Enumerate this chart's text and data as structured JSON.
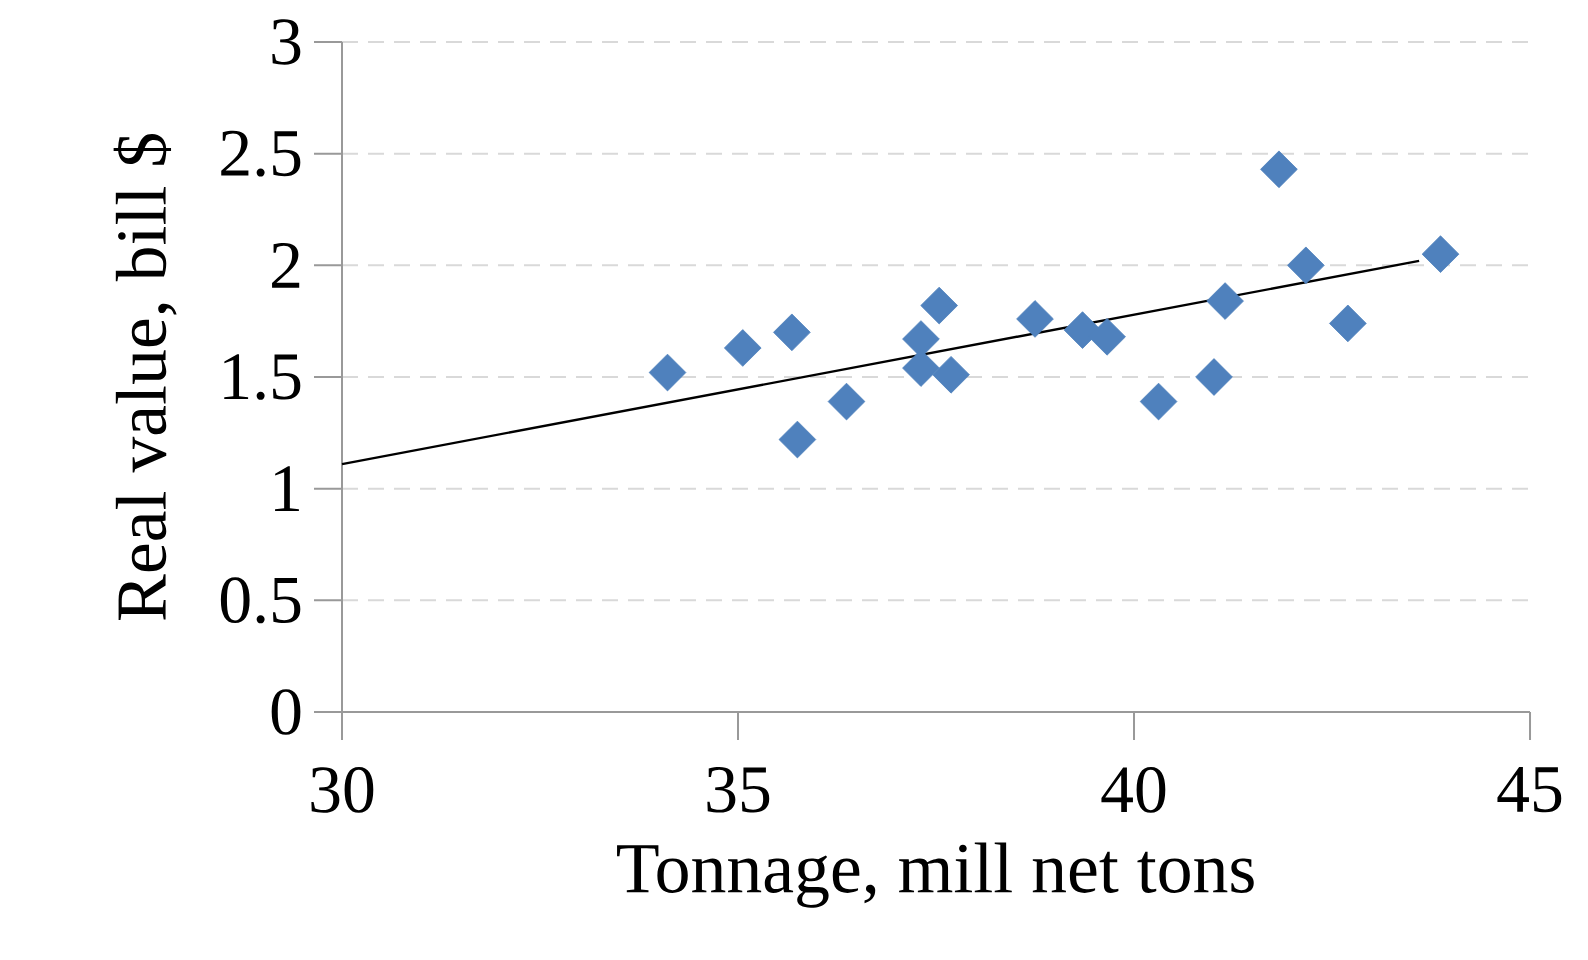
{
  "chart_data": {
    "type": "scatter",
    "xlabel": "Tonnage, mill net tons",
    "ylabel": "Real value, bill $",
    "xlim": [
      30,
      45
    ],
    "xticks": [
      30,
      35,
      40,
      45
    ],
    "ylim": [
      0,
      3
    ],
    "yticks": [
      0,
      0.5,
      1,
      1.5,
      2,
      2.5,
      3
    ],
    "grid": "y",
    "marker": "diamond",
    "series": [
      {
        "color": "#4f81bd",
        "x": [
          34.11,
          35.06,
          35.68,
          35.75,
          36.37,
          37.31,
          37.31,
          37.54,
          37.69,
          38.75,
          39.35,
          39.66,
          40.31,
          41.01,
          41.15,
          41.83,
          42.17,
          42.7,
          43.87
        ],
        "values": [
          1.52,
          1.63,
          1.7,
          1.22,
          1.39,
          1.67,
          1.54,
          1.82,
          1.51,
          1.76,
          1.71,
          1.68,
          1.39,
          1.5,
          1.84,
          2.43,
          2.0,
          1.74,
          2.05
        ]
      },
      {
        "type": "line",
        "color": "#000000",
        "marker": "none",
        "x": [
          30,
          43.6
        ],
        "values": [
          1.11,
          2.02
        ]
      }
    ]
  }
}
